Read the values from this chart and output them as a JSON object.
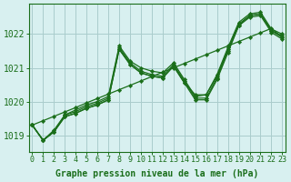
{
  "background_color": "#d8f0f0",
  "grid_color": "#aacccc",
  "line_color": "#1a6e1a",
  "marker_color": "#1a6e1a",
  "xlabel": "Graphe pression niveau de la mer (hPa)",
  "xlabel_color": "#1a6e1a",
  "xticks": [
    0,
    1,
    2,
    3,
    4,
    5,
    6,
    7,
    8,
    9,
    10,
    11,
    12,
    13,
    14,
    15,
    16,
    17,
    18,
    19,
    20,
    21,
    22,
    23
  ],
  "yticks": [
    1019,
    1020,
    1021,
    1022
  ],
  "ylim": [
    1018.5,
    1022.9
  ],
  "xlim": [
    -0.3,
    23.3
  ],
  "series": [
    [
      1019.3,
      1018.85,
      1019.1,
      1019.55,
      1019.65,
      1019.8,
      1019.9,
      1020.05,
      1021.55,
      1021.1,
      1020.85,
      1020.75,
      1020.7,
      1021.05,
      1020.55,
      1020.05,
      1020.05,
      1020.65,
      1021.45,
      1022.25,
      1022.5,
      1022.55,
      1022.05,
      1021.85
    ],
    [
      1019.3,
      1018.85,
      1019.1,
      1019.55,
      1019.65,
      1019.8,
      1019.9,
      1020.05,
      1021.55,
      1021.1,
      1020.85,
      1020.75,
      1020.7,
      1021.05,
      1020.55,
      1020.2,
      1020.2,
      1020.75,
      1021.55,
      1022.3,
      1022.55,
      1022.6,
      1022.1,
      1021.95
    ],
    [
      1019.3,
      1018.85,
      1019.1,
      1019.6,
      1019.7,
      1019.85,
      1019.95,
      1020.1,
      1021.6,
      1021.15,
      1020.9,
      1020.8,
      1020.75,
      1021.1,
      1020.6,
      1020.1,
      1020.1,
      1020.7,
      1021.5,
      1022.25,
      1022.55,
      1022.6,
      1022.1,
      1021.9
    ],
    [
      1019.3,
      1018.85,
      1019.15,
      1019.6,
      1019.75,
      1019.9,
      1020.0,
      1020.15,
      1021.65,
      1021.2,
      1021.0,
      1020.9,
      1020.85,
      1021.15,
      1020.65,
      1020.15,
      1020.2,
      1020.8,
      1021.6,
      1022.35,
      1022.6,
      1022.65,
      1022.15,
      1022.0
    ]
  ],
  "series_linear": [
    1019.3,
    1019.43,
    1019.56,
    1019.69,
    1019.82,
    1019.96,
    1020.09,
    1020.22,
    1020.35,
    1020.48,
    1020.61,
    1020.74,
    1020.87,
    1021.0,
    1021.13,
    1021.26,
    1021.39,
    1021.52,
    1021.65,
    1021.78,
    1021.91,
    1022.04,
    1022.17,
    1021.9
  ],
  "fontsize_xlabel": 7,
  "fontsize_yticks": 7,
  "fontsize_xticks": 6
}
